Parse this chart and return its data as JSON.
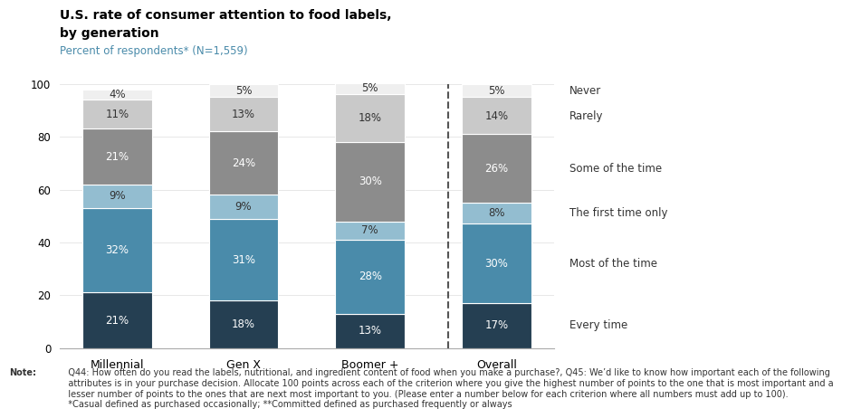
{
  "categories": [
    "Millennial",
    "Gen X",
    "Boomer +",
    "Overall"
  ],
  "series": [
    {
      "label": "Every time",
      "values": [
        21,
        18,
        13,
        17
      ],
      "color": "#253f52",
      "text_color": "#ffffff"
    },
    {
      "label": "Most of the time",
      "values": [
        32,
        31,
        28,
        30
      ],
      "color": "#4a8baa",
      "text_color": "#ffffff"
    },
    {
      "label": "The first time only",
      "values": [
        9,
        9,
        7,
        8
      ],
      "color": "#93bdd0",
      "text_color": "#333333"
    },
    {
      "label": "Some of the time",
      "values": [
        21,
        24,
        30,
        26
      ],
      "color": "#8c8c8c",
      "text_color": "#ffffff"
    },
    {
      "label": "Rarely",
      "values": [
        11,
        13,
        18,
        14
      ],
      "color": "#c9c9c9",
      "text_color": "#333333"
    },
    {
      "label": "Never",
      "values": [
        4,
        5,
        5,
        5
      ],
      "color": "#efefef",
      "text_color": "#333333"
    }
  ],
  "title_line1": "U.S. rate of consumer attention to food labels,",
  "title_line2": "by generation",
  "subtitle": "Percent of respondents* (N=1,559)",
  "ylim": [
    0,
    100
  ],
  "yticks": [
    0,
    20,
    40,
    60,
    80,
    100
  ],
  "note_text_bold": "Note:",
  "note_body": "   Q44: How often do you read the labels, nutritional, and ingredient content of food when you make a purchase?, Q45: We’d like to know how important each of the following\n   attributes is in your purchase decision. Allocate 100 points across each of the criterion where you give the highest number of points to the one that is most important and a\n   lesser number of points to the ones that are next most important to you. (Please enter a number below for each criterion where all numbers must add up to 100).\n   *Casual defined as purchased occasionally; **Committed defined as purchased frequently or always",
  "bar_width": 0.55,
  "background_color": "#ffffff",
  "subtitle_color": "#4a8baa",
  "legend_text_color": "#333333",
  "title_color": "#000000",
  "note_color": "#333333"
}
